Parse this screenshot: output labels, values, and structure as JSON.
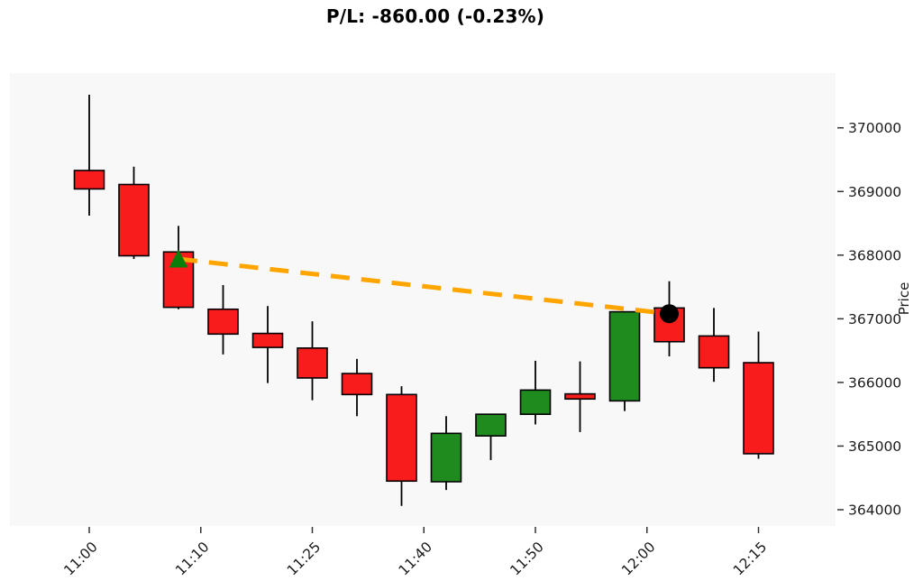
{
  "title": "P/L: -860.00 (-0.23%)",
  "chart_data": {
    "type": "candlestick",
    "title": "P/L: -860.00 (-0.23%)",
    "ylabel": "Price",
    "grid": false,
    "legend": "none",
    "ylim": [
      363740,
      370860
    ],
    "y_ticks": [
      {
        "value": 364000,
        "label": "364000"
      },
      {
        "value": 365000,
        "label": "365000"
      },
      {
        "value": 366000,
        "label": "366000"
      },
      {
        "value": 367000,
        "label": "367000"
      },
      {
        "value": 368000,
        "label": "368000"
      },
      {
        "value": 369000,
        "label": "369000"
      },
      {
        "value": 370000,
        "label": "370000"
      }
    ],
    "x_ticks": [
      {
        "index": 0,
        "label": "11:00"
      },
      {
        "index": 2.5,
        "label": "11:10"
      },
      {
        "index": 5,
        "label": "11:25"
      },
      {
        "index": 7.5,
        "label": "11:40"
      },
      {
        "index": 10,
        "label": "11:50"
      },
      {
        "index": 12.5,
        "label": "12:00"
      },
      {
        "index": 15,
        "label": "12:15"
      }
    ],
    "candles": [
      {
        "time": "11:00",
        "open": 369330,
        "high": 370520,
        "low": 368620,
        "close": 369040
      },
      {
        "time": "11:05",
        "open": 369110,
        "high": 369390,
        "low": 367940,
        "close": 367990
      },
      {
        "time": "11:10",
        "open": 368050,
        "high": 368460,
        "low": 367150,
        "close": 367180
      },
      {
        "time": "11:15",
        "open": 367150,
        "high": 367530,
        "low": 366440,
        "close": 366760
      },
      {
        "time": "11:20",
        "open": 366770,
        "high": 367200,
        "low": 365990,
        "close": 366550
      },
      {
        "time": "11:25",
        "open": 366540,
        "high": 366960,
        "low": 365720,
        "close": 366070
      },
      {
        "time": "11:30",
        "open": 366140,
        "high": 366370,
        "low": 365470,
        "close": 365810
      },
      {
        "time": "11:35",
        "open": 365810,
        "high": 365940,
        "low": 364060,
        "close": 364450
      },
      {
        "time": "11:40",
        "open": 364440,
        "high": 365470,
        "low": 364310,
        "close": 365200
      },
      {
        "time": "11:45",
        "open": 365160,
        "high": 365500,
        "low": 364780,
        "close": 365500
      },
      {
        "time": "11:50",
        "open": 365500,
        "high": 366340,
        "low": 365340,
        "close": 365880
      },
      {
        "time": "11:55",
        "open": 365820,
        "high": 366330,
        "low": 365220,
        "close": 365740
      },
      {
        "time": "12:00",
        "open": 365710,
        "high": 367110,
        "low": 365550,
        "close": 367110
      },
      {
        "time": "12:05",
        "open": 367170,
        "high": 367590,
        "low": 366410,
        "close": 366640
      },
      {
        "time": "12:10",
        "open": 366730,
        "high": 367170,
        "low": 366010,
        "close": 366230
      },
      {
        "time": "12:15",
        "open": 366310,
        "high": 366800,
        "low": 364800,
        "close": 364880
      }
    ],
    "trade": {
      "entry": {
        "index": 2,
        "time": "11:10",
        "price": 367940,
        "marker": "triangle-up"
      },
      "exit": {
        "index": 13,
        "time": "12:05",
        "price": 367080,
        "marker": "circle"
      },
      "pl_value": "-860.00",
      "pl_percent": "-0.23%"
    },
    "colors": {
      "up": "#1F8B1F",
      "down": "#F91C1C",
      "edge": "#000000",
      "wick": "#000000",
      "trade_line": "#FFA500",
      "entry_marker": "#0A7D0A",
      "exit_marker": "#000000",
      "plot_bg": "#F8F8F8",
      "fig_bg": "#FFFFFF",
      "tick": "#333333",
      "text": "#1A1A1A"
    }
  }
}
